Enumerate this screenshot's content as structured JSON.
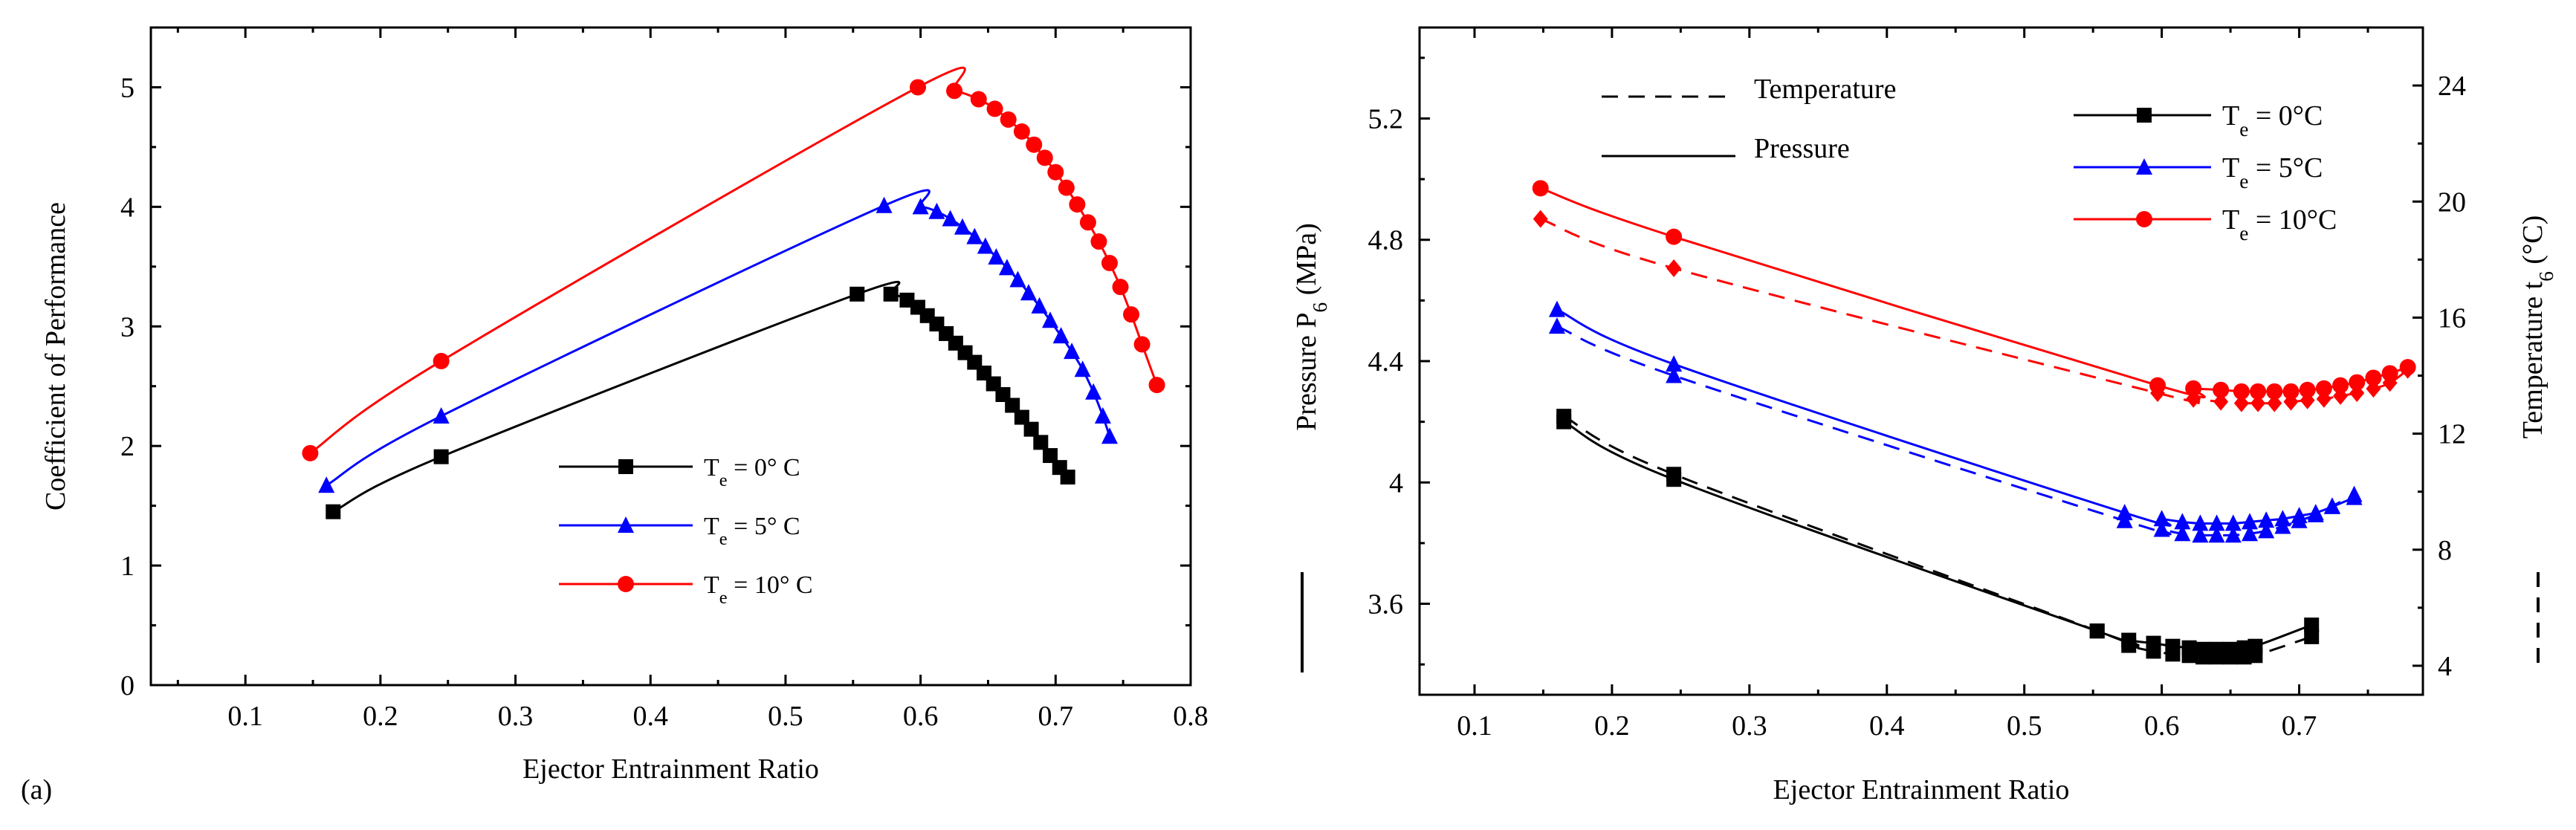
{
  "chart_data": [
    {
      "type": "line",
      "panel_label": "(a)",
      "title": "",
      "xlabel": "Ejector Entrainment Ratio",
      "ylabel": "Coefficient of Performance",
      "xlim": [
        0.03,
        0.8
      ],
      "ylim": [
        0,
        5.5
      ],
      "x_ticks": [
        "0.1",
        "0.2",
        "0.3",
        "0.4",
        "0.5",
        "0.6",
        "0.7",
        "0.8"
      ],
      "y_ticks": [
        "0",
        "1",
        "2",
        "3",
        "4",
        "5"
      ],
      "legend_position": "center-right",
      "series": [
        {
          "name": "Te = 0° C",
          "legend_main": "T",
          "legend_sub": "e",
          "legend_rest": " = 0° C",
          "color": "#000000",
          "marker": "square",
          "x": [
            0.165,
            0.245,
            0.553,
            0.578,
            0.59,
            0.598,
            0.605,
            0.612,
            0.619,
            0.626,
            0.633,
            0.64,
            0.647,
            0.654,
            0.661,
            0.668,
            0.675,
            0.682,
            0.689,
            0.696,
            0.703,
            0.709
          ],
          "y": [
            1.45,
            1.91,
            3.27,
            3.27,
            3.22,
            3.16,
            3.09,
            3.02,
            2.94,
            2.86,
            2.78,
            2.7,
            2.61,
            2.52,
            2.43,
            2.34,
            2.24,
            2.14,
            2.03,
            1.92,
            1.82,
            1.74
          ]
        },
        {
          "name": "Te = 5° C",
          "legend_main": "T",
          "legend_sub": "e",
          "legend_rest": " = 5° C",
          "color": "#0000ff",
          "marker": "triangle",
          "x": [
            0.16,
            0.245,
            0.573,
            0.6,
            0.612,
            0.622,
            0.631,
            0.64,
            0.648,
            0.656,
            0.664,
            0.672,
            0.68,
            0.688,
            0.696,
            0.704,
            0.712,
            0.72,
            0.728,
            0.735,
            0.74
          ],
          "y": [
            1.67,
            2.25,
            4.01,
            4.0,
            3.96,
            3.9,
            3.83,
            3.75,
            3.67,
            3.58,
            3.49,
            3.39,
            3.28,
            3.17,
            3.05,
            2.92,
            2.79,
            2.64,
            2.45,
            2.25,
            2.08
          ]
        },
        {
          "name": "Te = 10° C",
          "legend_main": "T",
          "legend_sub": "e",
          "legend_rest": " = 10° C",
          "color": "#ff0000",
          "marker": "circle",
          "x": [
            0.148,
            0.245,
            0.598,
            0.625,
            0.643,
            0.655,
            0.665,
            0.675,
            0.684,
            0.692,
            0.7,
            0.708,
            0.716,
            0.724,
            0.732,
            0.74,
            0.748,
            0.756,
            0.764,
            0.775
          ],
          "y": [
            1.94,
            2.71,
            5.0,
            4.97,
            4.9,
            4.82,
            4.73,
            4.63,
            4.52,
            4.41,
            4.29,
            4.16,
            4.02,
            3.87,
            3.71,
            3.53,
            3.33,
            3.1,
            2.85,
            2.51
          ]
        }
      ]
    },
    {
      "type": "line",
      "title": "",
      "xlabel": "Ejector Entrainment Ratio",
      "ylabel_left": "Pressure P",
      "ylabel_left_sub": "6",
      "ylabel_left_unit": " (MPa)",
      "ylabel_right": "Temperature t",
      "ylabel_right_sub": "6",
      "ylabel_right_unit": " (°C)",
      "xlim": [
        0.06,
        0.79
      ],
      "ylim_left": [
        3.3,
        5.5
      ],
      "ylim_right": [
        3,
        26
      ],
      "x_ticks": [
        "0.1",
        "0.2",
        "0.3",
        "0.4",
        "0.5",
        "0.6",
        "0.7"
      ],
      "y_ticks_left": [
        "3.6",
        "4",
        "4.4",
        "4.8",
        "5.2"
      ],
      "y_ticks_right": [
        "4",
        "8",
        "12",
        "16",
        "20",
        "24"
      ],
      "style_legend": [
        {
          "label": "Temperature",
          "dash": "dashed"
        },
        {
          "label": "Pressure",
          "dash": "solid"
        }
      ],
      "series": [
        {
          "name": "Te = 0°C (Pressure)",
          "legend_main": "T",
          "legend_sub": "e",
          "legend_rest": " = 0°C",
          "color": "#000000",
          "marker": "square",
          "axis": "left",
          "dash": "solid",
          "x": [
            0.165,
            0.245,
            0.553,
            0.576,
            0.594,
            0.608,
            0.62,
            0.63,
            0.64,
            0.65,
            0.66,
            0.668,
            0.709
          ],
          "y": [
            4.2,
            4.01,
            3.51,
            3.48,
            3.47,
            3.46,
            3.455,
            3.45,
            3.45,
            3.45,
            3.455,
            3.46,
            3.53
          ]
        },
        {
          "name": "Te = 0°C (Temperature)",
          "color": "#000000",
          "marker": "square",
          "axis": "right",
          "dash": "dashed",
          "x": [
            0.165,
            0.245,
            0.553,
            0.576,
            0.594,
            0.608,
            0.62,
            0.63,
            0.64,
            0.65,
            0.66,
            0.668,
            0.709
          ],
          "y": [
            12.6,
            10.6,
            5.2,
            4.7,
            4.5,
            4.4,
            4.35,
            4.3,
            4.3,
            4.3,
            4.3,
            4.35,
            5.0
          ]
        },
        {
          "name": "Te = 5°C (Pressure)",
          "legend_main": "T",
          "legend_sub": "e",
          "legend_rest": " = 5°C",
          "color": "#0000ff",
          "marker": "triangle",
          "axis": "left",
          "dash": "solid",
          "x": [
            0.16,
            0.245,
            0.573,
            0.6,
            0.615,
            0.628,
            0.64,
            0.652,
            0.664,
            0.676,
            0.688,
            0.7,
            0.712,
            0.724,
            0.74
          ],
          "y": [
            4.57,
            4.39,
            3.9,
            3.88,
            3.87,
            3.865,
            3.865,
            3.865,
            3.87,
            3.875,
            3.88,
            3.89,
            3.9,
            3.92,
            3.95
          ]
        },
        {
          "name": "Te = 5°C (Temperature)",
          "color": "#0000ff",
          "marker": "triangle",
          "axis": "right",
          "dash": "dashed",
          "x": [
            0.16,
            0.245,
            0.573,
            0.6,
            0.615,
            0.628,
            0.64,
            0.652,
            0.664,
            0.676,
            0.688,
            0.7,
            0.712,
            0.724,
            0.74
          ],
          "y": [
            15.7,
            14.0,
            9.0,
            8.7,
            8.55,
            8.5,
            8.5,
            8.5,
            8.55,
            8.65,
            8.8,
            9.0,
            9.2,
            9.5,
            9.9
          ]
        },
        {
          "name": "Te = 10°C (Pressure)",
          "legend_main": "T",
          "legend_sub": "e",
          "legend_rest": " = 10°C",
          "color": "#ff0000",
          "marker": "circle",
          "axis": "left",
          "dash": "solid",
          "x": [
            0.148,
            0.245,
            0.597,
            0.623,
            0.643,
            0.658,
            0.67,
            0.682,
            0.694,
            0.706,
            0.718,
            0.73,
            0.742,
            0.754,
            0.766,
            0.779
          ],
          "y": [
            4.97,
            4.81,
            4.32,
            4.31,
            4.305,
            4.3,
            4.3,
            4.3,
            4.3,
            4.305,
            4.31,
            4.32,
            4.33,
            4.345,
            4.36,
            4.38
          ]
        },
        {
          "name": "Te = 10°C (Temperature)",
          "color": "#ff0000",
          "marker": "diamond",
          "axis": "right",
          "dash": "dashed",
          "x": [
            0.148,
            0.245,
            0.597,
            0.623,
            0.643,
            0.658,
            0.67,
            0.682,
            0.694,
            0.706,
            0.718,
            0.73,
            0.742,
            0.754,
            0.766,
            0.779
          ],
          "y": [
            19.4,
            17.7,
            13.4,
            13.2,
            13.1,
            13.05,
            13.05,
            13.05,
            13.1,
            13.15,
            13.2,
            13.3,
            13.4,
            13.55,
            13.75,
            14.2
          ]
        }
      ]
    }
  ]
}
